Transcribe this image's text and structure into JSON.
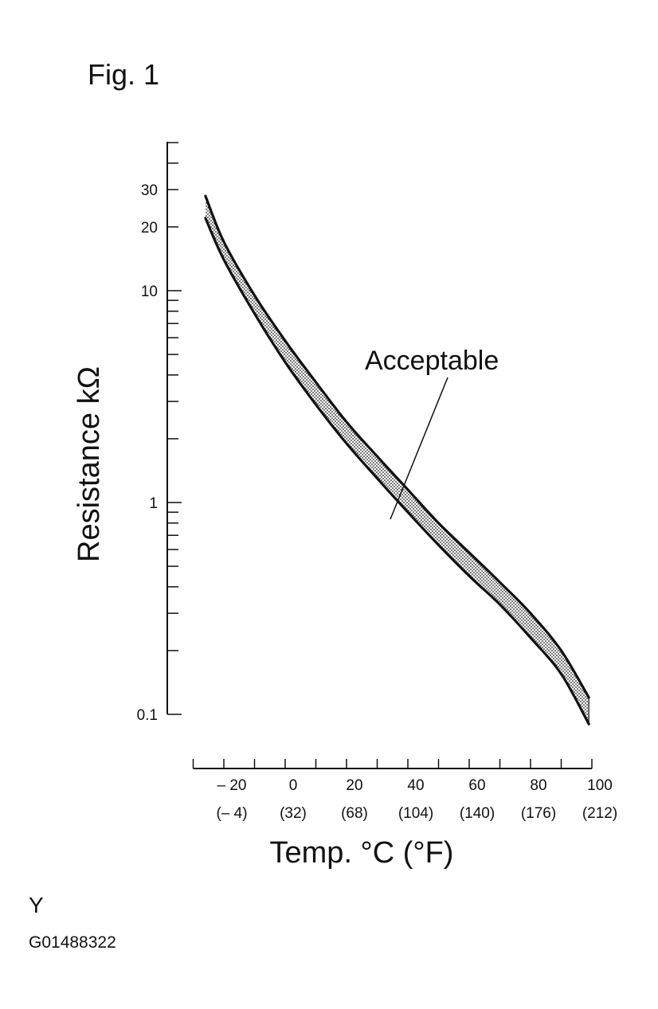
{
  "figure_label": "Fig. 1",
  "footer": {
    "letter": "Y",
    "code": "G01488322"
  },
  "colors": {
    "ink": "#111111",
    "band_fill": "#9a9a9a"
  },
  "chart_data": {
    "type": "area",
    "title": "",
    "xlabel": "Temp. °C (°F)",
    "ylabel": "Resistance kΩ",
    "y_scale": "log",
    "xlim": [
      -30,
      100
    ],
    "ylim": [
      0.1,
      100
    ],
    "x_ticks": [
      {
        "value": -20,
        "label": "– 20",
        "label_alt": "(– 4)"
      },
      {
        "value": 0,
        "label": "0",
        "label_alt": "(32)"
      },
      {
        "value": 20,
        "label": "20",
        "label_alt": "(68)"
      },
      {
        "value": 40,
        "label": "40",
        "label_alt": "(104)"
      },
      {
        "value": 60,
        "label": "60",
        "label_alt": "(140)"
      },
      {
        "value": 80,
        "label": "80",
        "label_alt": "(176)"
      },
      {
        "value": 100,
        "label": "100",
        "label_alt": "(212)"
      }
    ],
    "y_ticks": [
      {
        "value": 0.1,
        "label": "0.1"
      },
      {
        "value": 1,
        "label": "1"
      },
      {
        "value": 10,
        "label": "10"
      },
      {
        "value": 20,
        "label": "20"
      },
      {
        "value": 30,
        "label": "30"
      }
    ],
    "annotation": "Acceptable",
    "grid": false,
    "series": [
      {
        "x": [
          -26,
          -20,
          -10,
          0,
          10,
          20,
          30,
          40,
          50,
          60,
          70,
          80,
          90,
          99
        ],
        "values": [
          28,
          17,
          9.5,
          5.8,
          3.7,
          2.4,
          1.65,
          1.15,
          0.8,
          0.58,
          0.42,
          0.3,
          0.2,
          0.12
        ]
      },
      {
        "x": [
          -26,
          -20,
          -10,
          0,
          10,
          20,
          30,
          40,
          50,
          60,
          70,
          80,
          90,
          99
        ],
        "values": [
          22,
          14,
          7.8,
          4.6,
          2.9,
          1.9,
          1.3,
          0.9,
          0.63,
          0.45,
          0.33,
          0.23,
          0.155,
          0.09
        ]
      }
    ]
  }
}
